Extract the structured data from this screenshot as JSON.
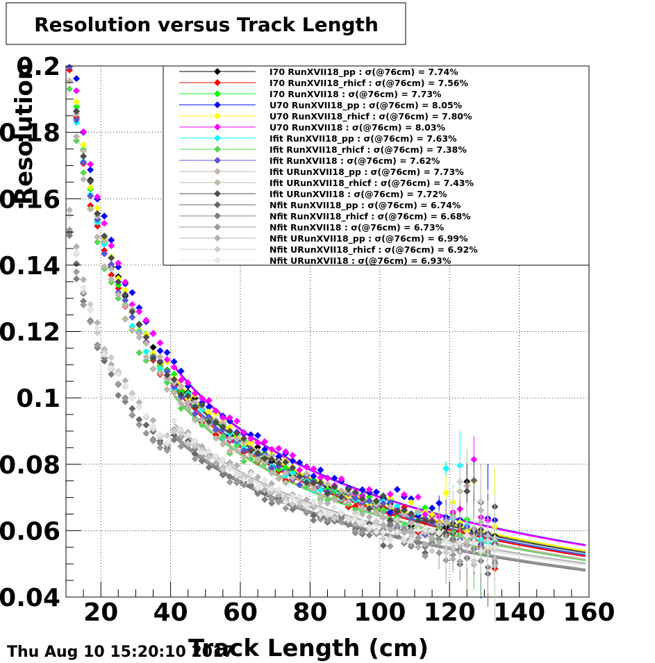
{
  "chart_data": {
    "type": "scatter",
    "title": "Resolution versus Track Length",
    "xlabel": "Track Length (cm)",
    "ylabel": "Resolution",
    "xlim": [
      10,
      160
    ],
    "ylim": [
      0.04,
      0.2
    ],
    "x_ticks": [
      20,
      40,
      60,
      80,
      100,
      120,
      140,
      160
    ],
    "y_ticks": [
      0.04,
      0.06,
      0.08,
      0.1,
      0.12,
      0.14,
      0.16,
      0.18,
      0.2
    ],
    "x_tick_labels": [
      "20",
      "40",
      "60",
      "80",
      "100",
      "120",
      "140",
      "160"
    ],
    "y_tick_labels": [
      "0.04",
      "0.06",
      "0.08",
      "0.1",
      "0.12",
      "0.14",
      "0.16",
      "0.18",
      "0.2"
    ],
    "grid": true,
    "legend_position": "top-right",
    "series": [
      {
        "name": "I70  RunXVII18_pp : σ(@76cm) =  7.74%",
        "color": "#000000",
        "sigma76": 0.0774
      },
      {
        "name": "I70  RunXVII18_rhicf : σ(@76cm) =  7.56%",
        "color": "#ff0000",
        "sigma76": 0.0756
      },
      {
        "name": "I70  RunXVII18 : σ(@76cm) =  7.73%",
        "color": "#00ff00",
        "sigma76": 0.0773
      },
      {
        "name": "U70  RunXVII18_pp : σ(@76cm) =  8.05%",
        "color": "#0000ff",
        "sigma76": 0.0805
      },
      {
        "name": "U70  RunXVII18_rhicf : σ(@76cm) =  7.80%",
        "color": "#ffff00",
        "sigma76": 0.078
      },
      {
        "name": "U70  RunXVII18 : σ(@76cm) =  8.03%",
        "color": "#ff00ff",
        "sigma76": 0.0803
      },
      {
        "name": "Ifit RunXVII18_pp : σ(@76cm) =  7.63%",
        "color": "#00ffff",
        "sigma76": 0.0763
      },
      {
        "name": "Ifit RunXVII18_rhicf : σ(@76cm) =  7.38%",
        "color": "#59d454",
        "sigma76": 0.0738
      },
      {
        "name": "Ifit RunXVII18 : σ(@76cm) =  7.62%",
        "color": "#5954d8",
        "sigma76": 0.0762
      },
      {
        "name": "Ifit URunXVII18_pp : σ(@76cm) =  7.73%",
        "color": "#c0b6ac",
        "sigma76": 0.0773
      },
      {
        "name": "Ifit URunXVII18_rhicf : σ(@76cm) =  7.43%",
        "color": "#c0b6ac",
        "sigma76": 0.0743
      },
      {
        "name": "Ifit URunXVII18 : σ(@76cm) =  7.72%",
        "color": "#4c4c4c",
        "sigma76": 0.0772
      },
      {
        "name": "Nfit RunXVII18_pp : σ(@76cm) =  6.74%",
        "color": "#666666",
        "sigma76": 0.0674
      },
      {
        "name": "Nfit RunXVII18_rhicf : σ(@76cm) =  6.68%",
        "color": "#7f7f7f",
        "sigma76": 0.0668
      },
      {
        "name": "Nfit RunXVII18 : σ(@76cm) =  6.73%",
        "color": "#999999",
        "sigma76": 0.0673
      },
      {
        "name": "Nfit URunXVII18_pp : σ(@76cm) =  6.99%",
        "color": "#b2b2b2",
        "sigma76": 0.0699
      },
      {
        "name": "Nfit URunXVII18_rhicf : σ(@76cm) =  6.92%",
        "color": "#cccccc",
        "sigma76": 0.0692
      },
      {
        "name": "Nfit URunXVII18 : σ(@76cm) =  6.93%",
        "color": "#e5e5e5",
        "sigma76": 0.0693
      }
    ]
  },
  "footer": {
    "timestamp": "Thu Aug 10 15:20:10 2017"
  }
}
